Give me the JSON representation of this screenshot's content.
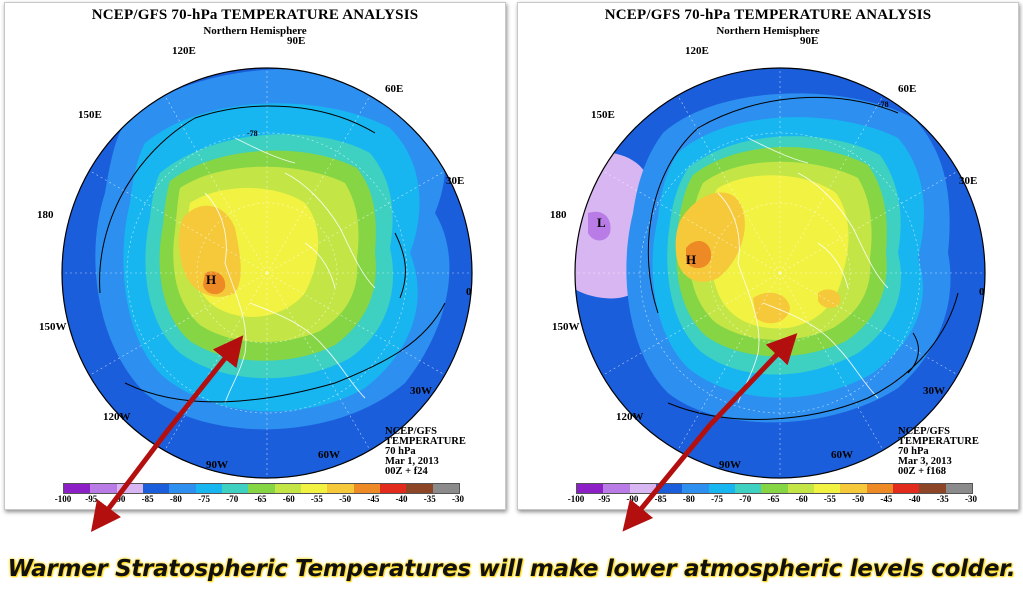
{
  "caption": "Warmer Stratospheric Temperatures will make lower atmospheric levels colder.",
  "colorbar": {
    "ticks": [
      "-100",
      "-95",
      "-90",
      "-85",
      "-80",
      "-75",
      "-70",
      "-65",
      "-60",
      "-55",
      "-50",
      "-45",
      "-40",
      "-35",
      "-30"
    ],
    "colors": [
      "#8c1fc6",
      "#b97ce6",
      "#d7b6f2",
      "#1b5edb",
      "#2d8ff0",
      "#18b6f0",
      "#3ed0c0",
      "#86d545",
      "#c3e646",
      "#f2f243",
      "#f5c93a",
      "#ee8a25",
      "#e22b1d",
      "#8c4526",
      "#8b8b8b"
    ]
  },
  "maps": [
    {
      "title": "NCEP/GFS 70-hPa TEMPERATURE ANALYSIS",
      "subtitle": "Northern Hemisphere",
      "longitudes": {
        "e120": "120E",
        "e90": "90E",
        "e60": "60E",
        "e150": "150E",
        "e30": "30E",
        "e180": "180",
        "e0": "0",
        "w150": "150W",
        "w30": "30W",
        "w120": "120W",
        "w60": "60W",
        "w90": "90W"
      },
      "contour_label": "-78",
      "high_label": "H",
      "low_label": "",
      "info": [
        "NCEP/GFS",
        "TEMPERATURE",
        "70 hPa",
        "Mar 1, 2013",
        "00Z + f24"
      ]
    },
    {
      "title": "NCEP/GFS 70-hPa TEMPERATURE ANALYSIS",
      "subtitle": "Northern Hemisphere",
      "longitudes": {
        "e120": "120E",
        "e90": "90E",
        "e60": "60E",
        "e150": "150E",
        "e30": "30E",
        "e180": "180",
        "e0": "0",
        "w150": "150W",
        "w30": "30W",
        "w120": "120W",
        "w60": "60W",
        "w90": "90W"
      },
      "contour_label": "-78",
      "high_label": "H",
      "low_label": "L",
      "info": [
        "NCEP/GFS",
        "TEMPERATURE",
        "70 hPa",
        "Mar 3, 2013",
        "00Z + f168"
      ]
    }
  ]
}
